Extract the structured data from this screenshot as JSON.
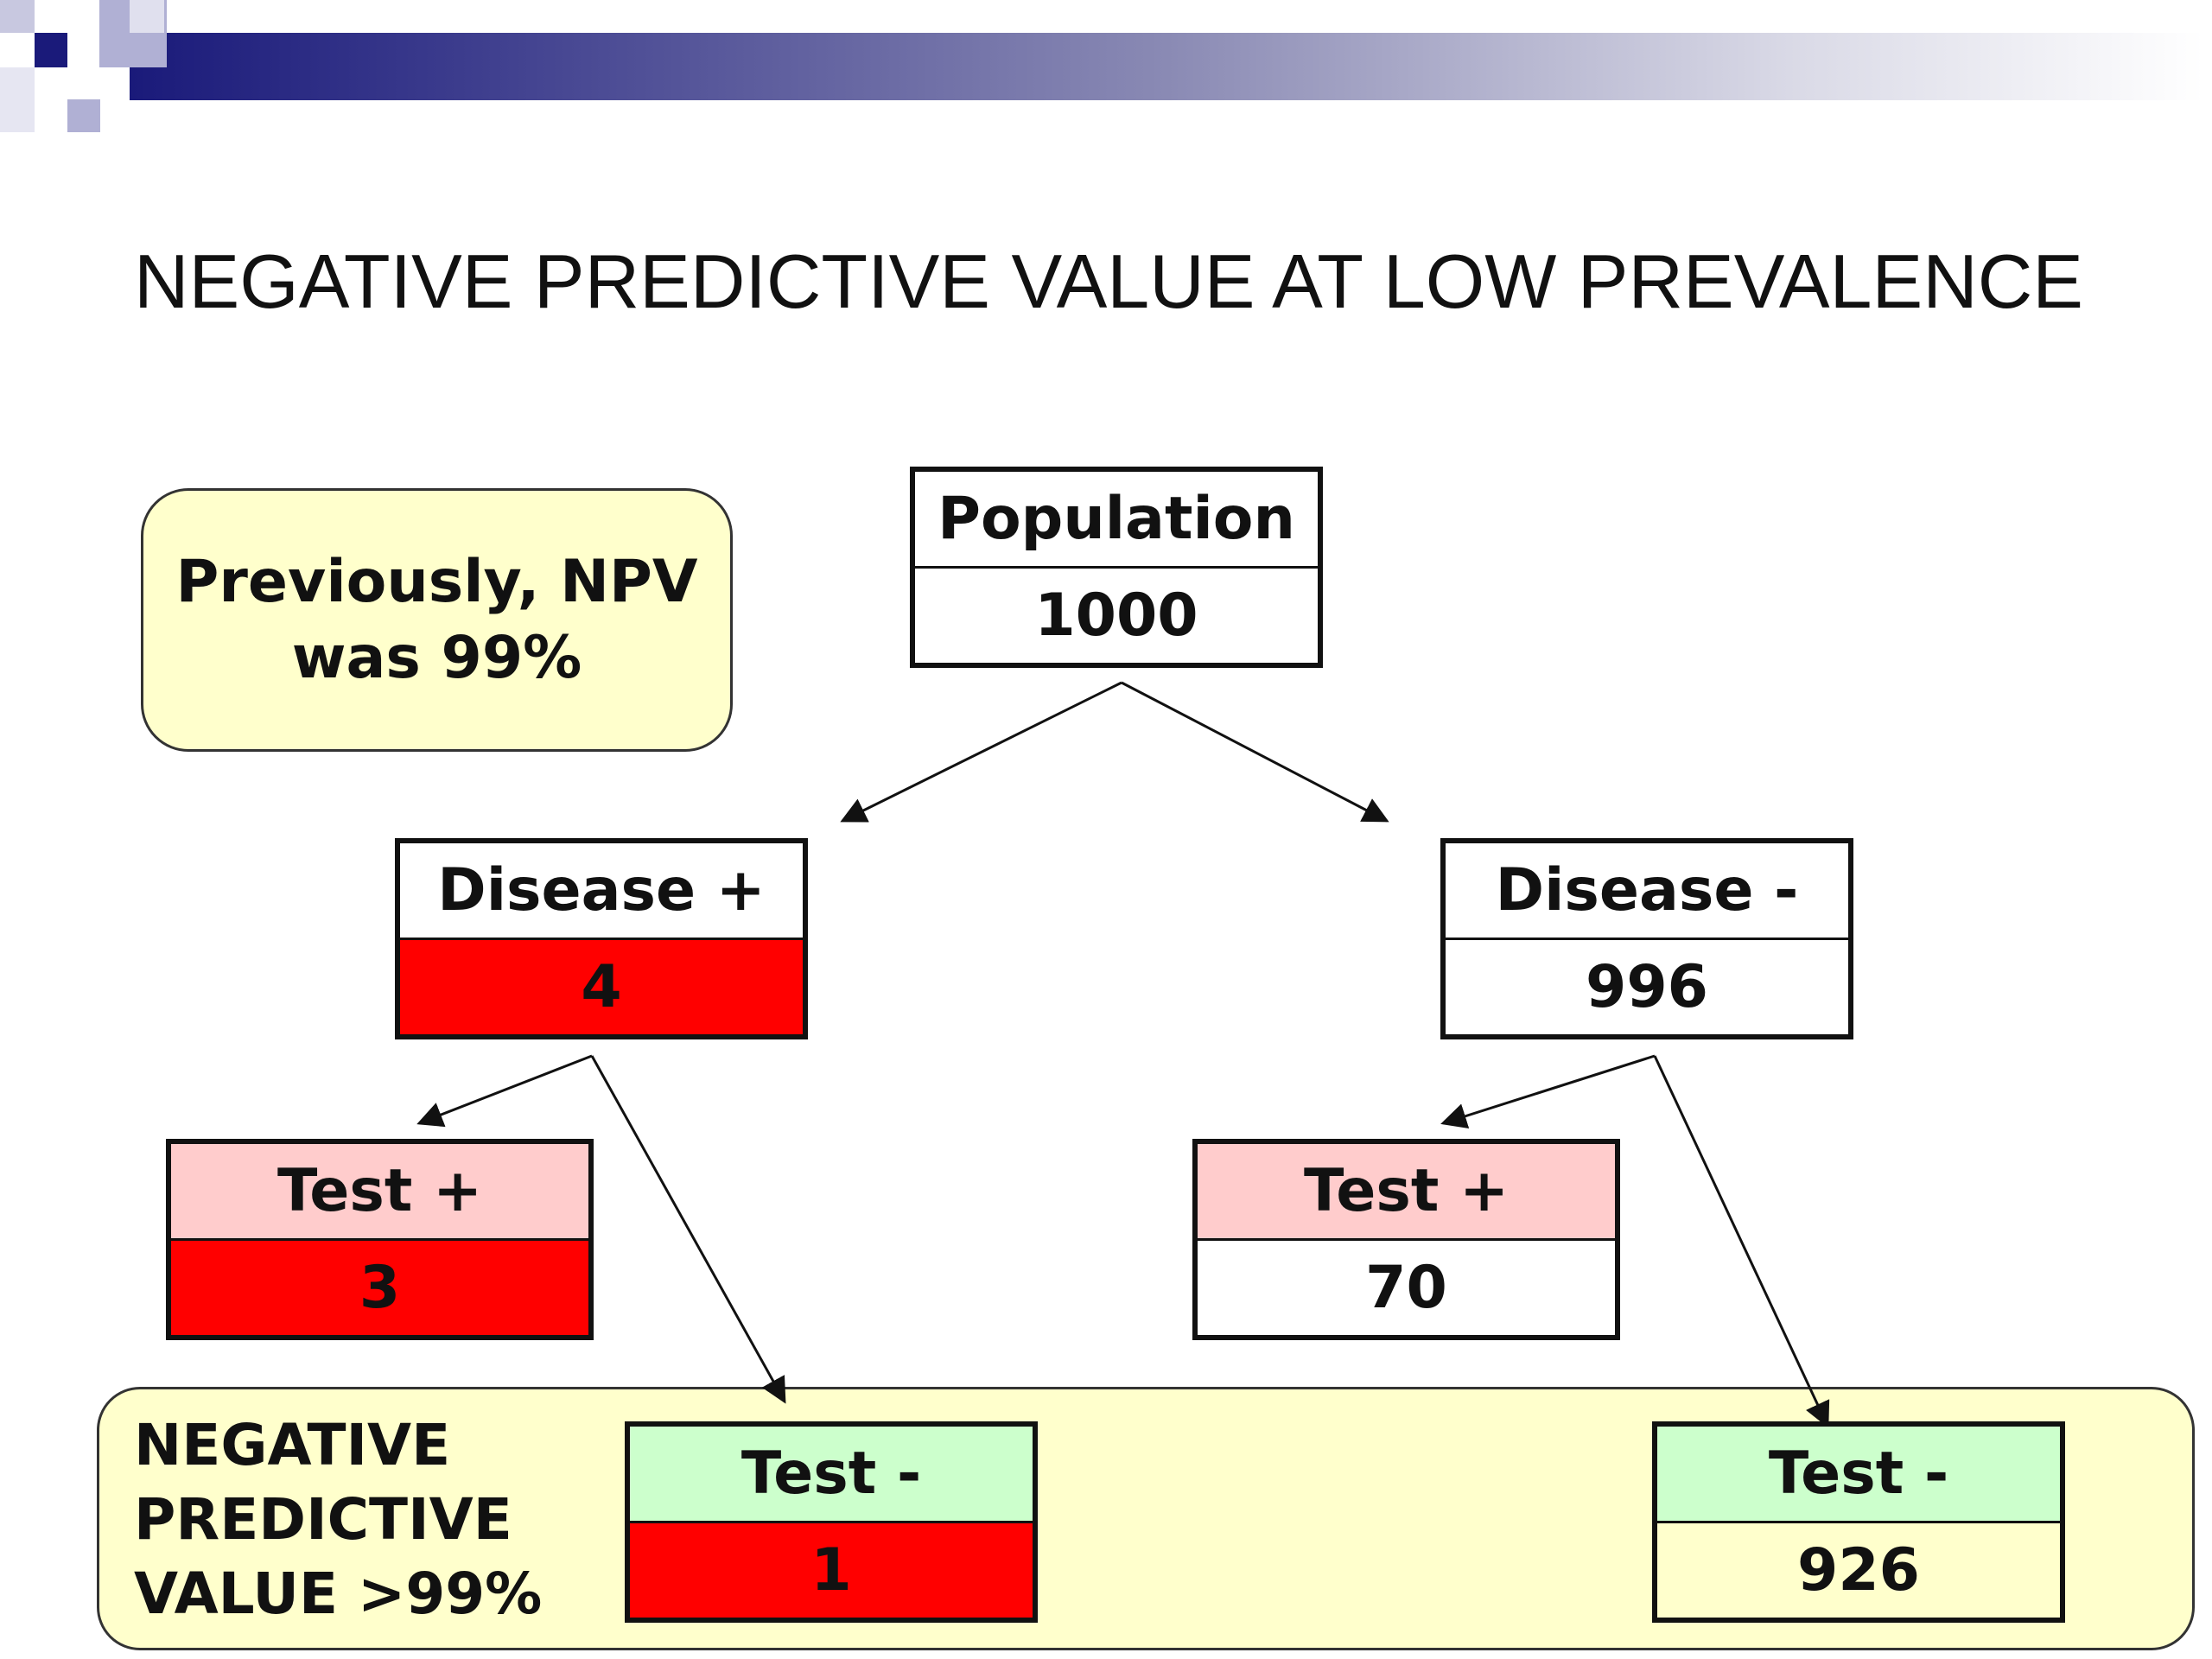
{
  "title": "NEGATIVE PREDICTIVE VALUE AT LOW PREVALENCE",
  "callout": {
    "text": "Previously, NPV\nwas 99%"
  },
  "summary": {
    "text": "NEGATIVE\nPREDICTIVE\nVALUE >99%"
  },
  "nodes": {
    "population": {
      "label": "Population",
      "value": "1000"
    },
    "disease_pos": {
      "label": "Disease +",
      "value": "4"
    },
    "disease_neg": {
      "label": "Disease -",
      "value": "996"
    },
    "dpos_test_pos": {
      "label": "Test +",
      "value": "3"
    },
    "dpos_test_neg": {
      "label": "Test -",
      "value": "1"
    },
    "dneg_test_pos": {
      "label": "Test +",
      "value": "70"
    },
    "dneg_test_neg": {
      "label": "Test -",
      "value": "926"
    }
  },
  "colors": {
    "header_dark": "#1a1a7a",
    "red_fill": "#ff0000",
    "test_pos_fill": "#ffcccc",
    "test_neg_fill": "#ccffcc",
    "callout_fill": "#ffffcc"
  }
}
